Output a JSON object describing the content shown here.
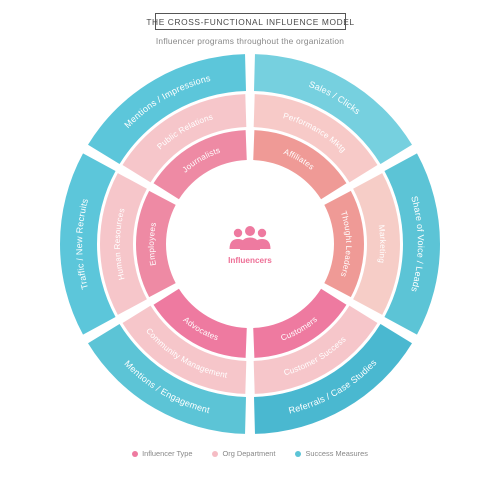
{
  "header": {
    "title": "THE CROSS-FUNCTIONAL INFLUENCE MODEL",
    "subtitle": "Influencer programs throughout the organization"
  },
  "center": {
    "label": "Influencers",
    "icon": "people-group-icon"
  },
  "rings": {
    "inner": [
      {
        "label": "Journalists"
      },
      {
        "label": "Affiliates"
      },
      {
        "label": "Thought Leaders"
      },
      {
        "label": "Customers"
      },
      {
        "label": "Advocates"
      },
      {
        "label": "Employees"
      }
    ],
    "middle": [
      {
        "label": "Public Relations"
      },
      {
        "label": "Performance Mktg"
      },
      {
        "label": "Marketing"
      },
      {
        "label": "Customer Success"
      },
      {
        "label": "Community Management"
      },
      {
        "label": "Human Resources"
      }
    ],
    "outer": [
      {
        "label": "Mentions / Impressions"
      },
      {
        "label": "Sales / Clicks"
      },
      {
        "label": "Share of Voice / Leads"
      },
      {
        "label": "Referrals / Case Studies"
      },
      {
        "label": "Mentions / Engagement"
      },
      {
        "label": "Traffic / New Recruits"
      }
    ]
  },
  "legend": [
    {
      "label": "Influencer Type",
      "color": "#ee7aa0"
    },
    {
      "label": "Org Department",
      "color": "#f5bcc4"
    },
    {
      "label": "Success Measures",
      "color": "#5cc4d6"
    }
  ],
  "colors": {
    "inner": [
      "#ee8aa4",
      "#ef9a96",
      "#ef9a96",
      "#ee7aa0",
      "#ee7aa0",
      "#ee8aa4"
    ],
    "middle": [
      "#f6c6ca",
      "#f7cac8",
      "#f6cdc7",
      "#f6c6ca",
      "#f6c6ca",
      "#f6c6ca"
    ],
    "outer": [
      "#5cc6da",
      "#76d0df",
      "#5cc4d6",
      "#4ab8d0",
      "#5cc4d6",
      "#5cc6da"
    ],
    "center_text": "#ee6f96"
  }
}
